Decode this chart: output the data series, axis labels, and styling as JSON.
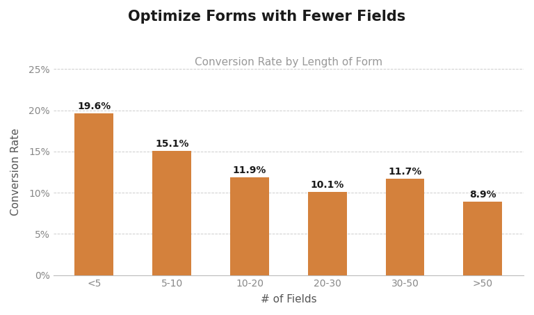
{
  "title": "Optimize Forms with Fewer Fields",
  "subtitle": "Conversion Rate by Length of Form",
  "xlabel": "# of Fields",
  "ylabel": "Conversion Rate",
  "categories": [
    "<5",
    "5-10",
    "10-20",
    "20-30",
    "30-50",
    ">50"
  ],
  "values": [
    19.6,
    15.1,
    11.9,
    10.1,
    11.7,
    8.9
  ],
  "bar_color": "#D4813C",
  "background_color": "#ffffff",
  "ylim": [
    0,
    25
  ],
  "yticks": [
    0,
    5,
    10,
    15,
    20,
    25
  ],
  "title_fontsize": 15,
  "subtitle_fontsize": 11,
  "label_fontsize": 11,
  "tick_fontsize": 10,
  "annotation_fontsize": 10,
  "grid_color": "#cccccc",
  "axis_color": "#bbbbbb",
  "title_color": "#1a1a1a",
  "subtitle_color": "#999999",
  "ylabel_color": "#555555",
  "xlabel_color": "#555555",
  "tick_color": "#888888"
}
